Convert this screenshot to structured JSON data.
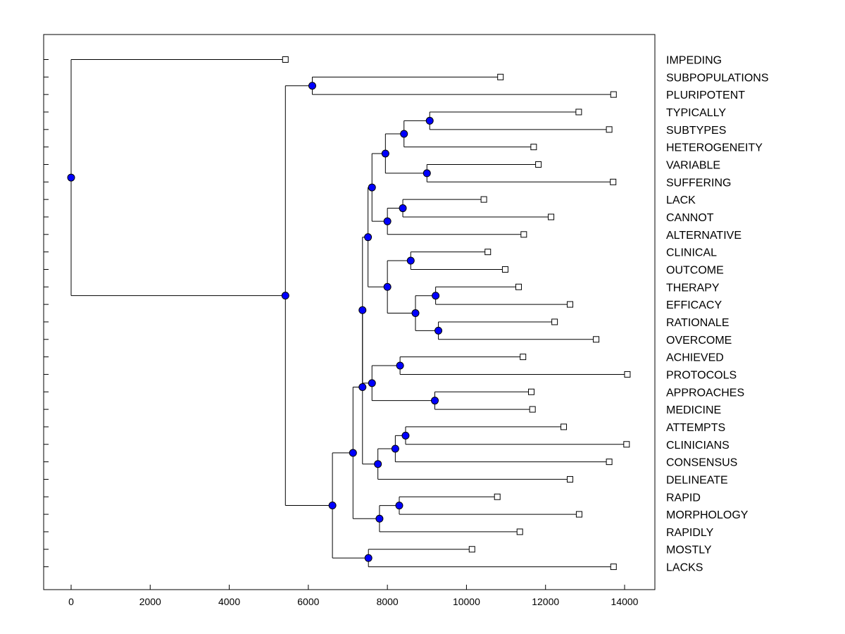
{
  "chart_data": {
    "type": "dendrogram",
    "title": "",
    "xlabel": "",
    "ylabel": "",
    "xlim": [
      -700,
      14700
    ],
    "xticks": [
      0,
      2000,
      4000,
      6000,
      8000,
      10000,
      12000,
      14000
    ],
    "grid": false,
    "colors": {
      "node": "#0000ff",
      "line": "#000000",
      "leaf_fill": "#ffffff"
    },
    "leaves": [
      {
        "name": "IMPEDING",
        "x": 5420
      },
      {
        "name": "SUBPOPULATIONS",
        "x": 10860
      },
      {
        "name": "PLURIPOTENT",
        "x": 13720
      },
      {
        "name": "TYPICALLY",
        "x": 12840
      },
      {
        "name": "SUBTYPES",
        "x": 13610
      },
      {
        "name": "HETEROGENEITY",
        "x": 11700
      },
      {
        "name": "VARIABLE",
        "x": 11820
      },
      {
        "name": "SUFFERING",
        "x": 13710
      },
      {
        "name": "LACK",
        "x": 10440
      },
      {
        "name": "CANNOT",
        "x": 12140
      },
      {
        "name": "ALTERNATIVE",
        "x": 11450
      },
      {
        "name": "CLINICAL",
        "x": 10540
      },
      {
        "name": "OUTCOME",
        "x": 10980
      },
      {
        "name": "THERAPY",
        "x": 11320
      },
      {
        "name": "EFFICACY",
        "x": 12620
      },
      {
        "name": "RATIONALE",
        "x": 12230
      },
      {
        "name": "OVERCOME",
        "x": 13280
      },
      {
        "name": "ACHIEVED",
        "x": 11430
      },
      {
        "name": "PROTOCOLS",
        "x": 14070
      },
      {
        "name": "APPROACHES",
        "x": 11640
      },
      {
        "name": "MEDICINE",
        "x": 11670
      },
      {
        "name": "ATTEMPTS",
        "x": 12460
      },
      {
        "name": "CLINICIANS",
        "x": 14050
      },
      {
        "name": "CONSENSUS",
        "x": 13610
      },
      {
        "name": "DELINEATE",
        "x": 12620
      },
      {
        "name": "RAPID",
        "x": 10780
      },
      {
        "name": "MORPHOLOGY",
        "x": 12850
      },
      {
        "name": "RAPIDLY",
        "x": 11350
      },
      {
        "name": "MOSTLY",
        "x": 10140
      },
      {
        "name": "LACKS",
        "x": 13720
      }
    ],
    "merges": [
      {
        "id": "n1",
        "x": 6100,
        "children": [
          "SUBPOPULATIONS",
          "PLURIPOTENT"
        ]
      },
      {
        "id": "n2",
        "x": 9070,
        "children": [
          "TYPICALLY",
          "SUBTYPES"
        ]
      },
      {
        "id": "n3",
        "x": 8420,
        "children": [
          "n2",
          "HETEROGENEITY"
        ]
      },
      {
        "id": "n4",
        "x": 9000,
        "children": [
          "VARIABLE",
          "SUFFERING"
        ]
      },
      {
        "id": "n5",
        "x": 7950,
        "children": [
          "n3",
          "n4"
        ]
      },
      {
        "id": "n6",
        "x": 8390,
        "children": [
          "LACK",
          "CANNOT"
        ]
      },
      {
        "id": "n7",
        "x": 8000,
        "children": [
          "n6",
          "ALTERNATIVE"
        ]
      },
      {
        "id": "n8",
        "x": 7610,
        "children": [
          "n5",
          "n7"
        ]
      },
      {
        "id": "n9",
        "x": 8590,
        "children": [
          "CLINICAL",
          "OUTCOME"
        ]
      },
      {
        "id": "n10",
        "x": 9220,
        "children": [
          "THERAPY",
          "EFFICACY"
        ]
      },
      {
        "id": "n11",
        "x": 9290,
        "children": [
          "RATIONALE",
          "OVERCOME"
        ]
      },
      {
        "id": "n12",
        "x": 8710,
        "children": [
          "n10",
          "n11"
        ]
      },
      {
        "id": "n13",
        "x": 8000,
        "children": [
          "n9",
          "n12"
        ]
      },
      {
        "id": "n14",
        "x": 7510,
        "children": [
          "n8",
          "n13"
        ]
      },
      {
        "id": "n15",
        "x": 8320,
        "children": [
          "ACHIEVED",
          "PROTOCOLS"
        ]
      },
      {
        "id": "n16",
        "x": 9200,
        "children": [
          "APPROACHES",
          "MEDICINE"
        ]
      },
      {
        "id": "n17",
        "x": 7610,
        "children": [
          "n15",
          "n16"
        ]
      },
      {
        "id": "n18",
        "x": 7370,
        "children": [
          "n14",
          "n17"
        ]
      },
      {
        "id": "n19",
        "x": 8460,
        "children": [
          "ATTEMPTS",
          "CLINICIANS"
        ]
      },
      {
        "id": "n20",
        "x": 8200,
        "children": [
          "n19",
          "CONSENSUS"
        ]
      },
      {
        "id": "n21",
        "x": 7760,
        "children": [
          "n20",
          "DELINEATE"
        ]
      },
      {
        "id": "n22",
        "x": 7370,
        "children": [
          "n18",
          "n21"
        ]
      },
      {
        "id": "n23",
        "x": 8300,
        "children": [
          "RAPID",
          "MORPHOLOGY"
        ]
      },
      {
        "id": "n24",
        "x": 7800,
        "children": [
          "n23",
          "RAPIDLY"
        ]
      },
      {
        "id": "n25",
        "x": 7130,
        "children": [
          "n22",
          "n24"
        ]
      },
      {
        "id": "n26",
        "x": 7520,
        "children": [
          "MOSTLY",
          "LACKS"
        ]
      },
      {
        "id": "n27",
        "x": 6610,
        "children": [
          "n25",
          "n26"
        ]
      },
      {
        "id": "n28",
        "x": 5420,
        "children": [
          "n1",
          "n27"
        ]
      },
      {
        "id": "n29",
        "x": 0,
        "children": [
          "IMPEDING",
          "n28"
        ]
      }
    ]
  }
}
